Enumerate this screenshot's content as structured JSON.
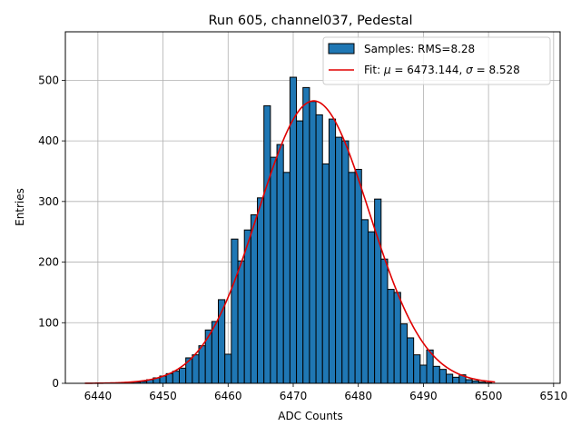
{
  "chart_data": {
    "type": "bar",
    "title": "Run 605, channel037, Pedestal",
    "xlabel": "ADC Counts",
    "ylabel": "Entries",
    "xlim": [
      6435,
      6511
    ],
    "ylim": [
      0,
      580
    ],
    "xticks": [
      6440,
      6450,
      6460,
      6470,
      6480,
      6490,
      6500,
      6510
    ],
    "yticks": [
      0,
      100,
      200,
      300,
      400,
      500
    ],
    "grid": true,
    "legend_position": "top-right",
    "bar_color": "#1f77b4",
    "bar_edge_color": "#000000",
    "fit_color": "#e00000",
    "bin_width": 1,
    "bins": [
      {
        "x": 6445,
        "y": 1
      },
      {
        "x": 6446,
        "y": 2
      },
      {
        "x": 6447,
        "y": 3
      },
      {
        "x": 6448,
        "y": 6
      },
      {
        "x": 6449,
        "y": 9
      },
      {
        "x": 6450,
        "y": 12
      },
      {
        "x": 6451,
        "y": 16
      },
      {
        "x": 6452,
        "y": 20
      },
      {
        "x": 6453,
        "y": 25
      },
      {
        "x": 6454,
        "y": 42
      },
      {
        "x": 6455,
        "y": 47
      },
      {
        "x": 6456,
        "y": 62
      },
      {
        "x": 6457,
        "y": 88
      },
      {
        "x": 6458,
        "y": 102
      },
      {
        "x": 6459,
        "y": 138
      },
      {
        "x": 6460,
        "y": 48
      },
      {
        "x": 6461,
        "y": 238
      },
      {
        "x": 6462,
        "y": 202
      },
      {
        "x": 6463,
        "y": 253
      },
      {
        "x": 6464,
        "y": 278
      },
      {
        "x": 6465,
        "y": 306
      },
      {
        "x": 6466,
        "y": 458
      },
      {
        "x": 6467,
        "y": 373
      },
      {
        "x": 6468,
        "y": 394
      },
      {
        "x": 6469,
        "y": 348
      },
      {
        "x": 6470,
        "y": 505
      },
      {
        "x": 6471,
        "y": 433
      },
      {
        "x": 6472,
        "y": 488
      },
      {
        "x": 6473,
        "y": 465
      },
      {
        "x": 6474,
        "y": 443
      },
      {
        "x": 6475,
        "y": 362
      },
      {
        "x": 6476,
        "y": 436
      },
      {
        "x": 6477,
        "y": 406
      },
      {
        "x": 6478,
        "y": 400
      },
      {
        "x": 6479,
        "y": 348
      },
      {
        "x": 6480,
        "y": 353
      },
      {
        "x": 6481,
        "y": 270
      },
      {
        "x": 6482,
        "y": 250
      },
      {
        "x": 6483,
        "y": 304
      },
      {
        "x": 6484,
        "y": 205
      },
      {
        "x": 6485,
        "y": 155
      },
      {
        "x": 6486,
        "y": 150
      },
      {
        "x": 6487,
        "y": 98
      },
      {
        "x": 6488,
        "y": 75
      },
      {
        "x": 6489,
        "y": 47
      },
      {
        "x": 6490,
        "y": 30
      },
      {
        "x": 6491,
        "y": 55
      },
      {
        "x": 6492,
        "y": 28
      },
      {
        "x": 6493,
        "y": 23
      },
      {
        "x": 6494,
        "y": 15
      },
      {
        "x": 6495,
        "y": 10
      },
      {
        "x": 6496,
        "y": 14
      },
      {
        "x": 6497,
        "y": 6
      },
      {
        "x": 6498,
        "y": 4
      },
      {
        "x": 6499,
        "y": 2
      },
      {
        "x": 6500,
        "y": 1
      }
    ],
    "series": [
      {
        "name": "Samples: RMS=8.28",
        "kind": "histogram"
      },
      {
        "name": "Fit: μ = 6473.144, σ = 8.528",
        "kind": "line",
        "mu": 6473.144,
        "sigma": 8.528,
        "amplitude": 466,
        "x_range": [
          6438,
          6501
        ]
      }
    ],
    "legend": {
      "samples_prefix": "Samples: RMS=8.28",
      "fit_prefix": "Fit: ",
      "fit_mu_symbol": "μ",
      "fit_mu_value": " = 6473.144, ",
      "fit_sigma_symbol": "σ",
      "fit_sigma_value": " = 8.528"
    }
  }
}
